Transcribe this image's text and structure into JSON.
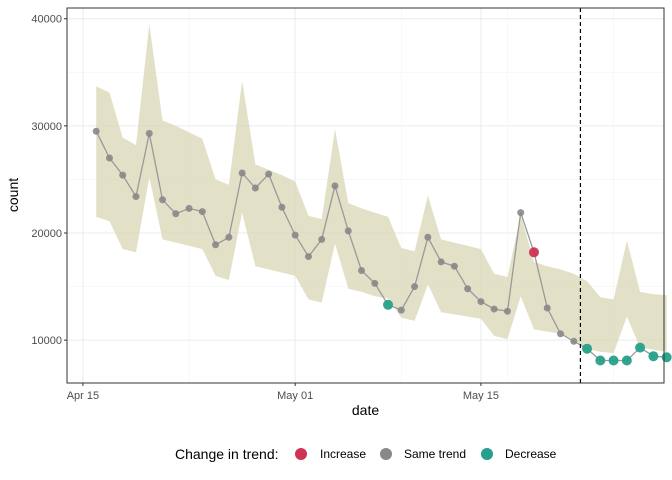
{
  "chart_data": {
    "type": "line",
    "xlabel": "date",
    "ylabel": "count",
    "x_tick_labels": [
      "Apr 15",
      "May 01",
      "May 15"
    ],
    "x_tick_days": [
      0,
      16,
      30
    ],
    "x_range_days": [
      -1.2,
      43.8
    ],
    "y_tick_labels": [
      "10000",
      "20000",
      "30000",
      "40000"
    ],
    "y_ticks": [
      10000,
      20000,
      30000,
      40000
    ],
    "ylim": [
      6000,
      41000
    ],
    "cutoff_day": 37.5,
    "colors": {
      "Increase": "#cc3355",
      "Same trend": "#888888",
      "Decrease": "#26a08a",
      "ribbon": "#d6d4b0",
      "line": "#999999"
    },
    "legend": {
      "title": "Change in trend:",
      "entries": [
        "Increase",
        "Same trend",
        "Decrease"
      ]
    },
    "points": [
      {
        "day": 1,
        "count": 29500,
        "trend": "Same trend",
        "lower": 21500,
        "upper": 33700
      },
      {
        "day": 2,
        "count": 27000,
        "trend": "Same trend",
        "lower": 21100,
        "upper": 33100
      },
      {
        "day": 3,
        "count": 25400,
        "trend": "Same trend",
        "lower": 18500,
        "upper": 28900
      },
      {
        "day": 4,
        "count": 23400,
        "trend": "Same trend",
        "lower": 18200,
        "upper": 28200
      },
      {
        "day": 5,
        "count": 29300,
        "trend": "Same trend",
        "lower": 25200,
        "upper": 39500
      },
      {
        "day": 6,
        "count": 23100,
        "trend": "Same trend",
        "lower": 19400,
        "upper": 30500
      },
      {
        "day": 7,
        "count": 21800,
        "trend": "Same trend",
        "lower": 19100,
        "upper": 30000
      },
      {
        "day": 8,
        "count": 22300,
        "trend": "Same trend",
        "lower": 18800,
        "upper": 29400
      },
      {
        "day": 9,
        "count": 22000,
        "trend": "Same trend",
        "lower": 18500,
        "upper": 28800
      },
      {
        "day": 10,
        "count": 18900,
        "trend": "Same trend",
        "lower": 16000,
        "upper": 25000
      },
      {
        "day": 11,
        "count": 19600,
        "trend": "Same trend",
        "lower": 15600,
        "upper": 24500
      },
      {
        "day": 12,
        "count": 25600,
        "trend": "Same trend",
        "lower": 21900,
        "upper": 34200
      },
      {
        "day": 13,
        "count": 24200,
        "trend": "Same trend",
        "lower": 16900,
        "upper": 26400
      },
      {
        "day": 14,
        "count": 25500,
        "trend": "Same trend",
        "lower": 16600,
        "upper": 25900
      },
      {
        "day": 15,
        "count": 22400,
        "trend": "Same trend",
        "lower": 16300,
        "upper": 25400
      },
      {
        "day": 16,
        "count": 19800,
        "trend": "Same trend",
        "lower": 16000,
        "upper": 24800
      },
      {
        "day": 17,
        "count": 17800,
        "trend": "Same trend",
        "lower": 13800,
        "upper": 21600
      },
      {
        "day": 18,
        "count": 19400,
        "trend": "Same trend",
        "lower": 13500,
        "upper": 21300
      },
      {
        "day": 19,
        "count": 24400,
        "trend": "Same trend",
        "lower": 19000,
        "upper": 29700
      },
      {
        "day": 20,
        "count": 20200,
        "trend": "Same trend",
        "lower": 14800,
        "upper": 22800
      },
      {
        "day": 21,
        "count": 16500,
        "trend": "Same trend",
        "lower": 14500,
        "upper": 22300
      },
      {
        "day": 22,
        "count": 15300,
        "trend": "Same trend",
        "lower": 14100,
        "upper": 21900
      },
      {
        "day": 23,
        "count": 13300,
        "trend": "Decrease",
        "lower": 13900,
        "upper": 21500
      },
      {
        "day": 24,
        "count": 12800,
        "trend": "Same trend",
        "lower": 12100,
        "upper": 18600
      },
      {
        "day": 25,
        "count": 15000,
        "trend": "Same trend",
        "lower": 11800,
        "upper": 18300
      },
      {
        "day": 26,
        "count": 19600,
        "trend": "Same trend",
        "lower": 15200,
        "upper": 23500
      },
      {
        "day": 27,
        "count": 17300,
        "trend": "Same trend",
        "lower": 12600,
        "upper": 19400
      },
      {
        "day": 28,
        "count": 16900,
        "trend": "Same trend",
        "lower": 12400,
        "upper": 19100
      },
      {
        "day": 29,
        "count": 14800,
        "trend": "Same trend",
        "lower": 12200,
        "upper": 18800
      },
      {
        "day": 30,
        "count": 13600,
        "trend": "Same trend",
        "lower": 12000,
        "upper": 18500
      },
      {
        "day": 31,
        "count": 12900,
        "trend": "Same trend",
        "lower": 10400,
        "upper": 16200
      },
      {
        "day": 32,
        "count": 12700,
        "trend": "Same trend",
        "lower": 10100,
        "upper": 15900
      },
      {
        "day": 33,
        "count": 21900,
        "trend": "Same trend",
        "lower": 14100,
        "upper": 21700
      },
      {
        "day": 34,
        "count": 18200,
        "trend": "Increase",
        "lower": 11000,
        "upper": 17300
      },
      {
        "day": 35,
        "count": 13000,
        "trend": "Same trend",
        "lower": 10800,
        "upper": 16900
      },
      {
        "day": 36,
        "count": 10600,
        "trend": "Same trend",
        "lower": 10600,
        "upper": 16600
      },
      {
        "day": 37,
        "count": 9900,
        "trend": "Same trend",
        "lower": 10100,
        "upper": 16200
      },
      {
        "day": 38,
        "count": 9200,
        "trend": "Decrease",
        "lower": 9200,
        "upper": 15500
      },
      {
        "day": 39,
        "count": 8100,
        "trend": "Decrease",
        "lower": 8900,
        "upper": 14000
      },
      {
        "day": 40,
        "count": 8100,
        "trend": "Decrease",
        "lower": 8800,
        "upper": 13800
      },
      {
        "day": 41,
        "count": 8100,
        "trend": "Decrease",
        "lower": 12200,
        "upper": 19300
      },
      {
        "day": 42,
        "count": 9300,
        "trend": "Decrease",
        "lower": 9300,
        "upper": 14500
      },
      {
        "day": 43,
        "count": 8500,
        "trend": "Decrease",
        "lower": 9100,
        "upper": 14300
      },
      {
        "day": 44,
        "count": 8400,
        "trend": "Decrease",
        "lower": 8900,
        "upper": 14200
      }
    ]
  }
}
